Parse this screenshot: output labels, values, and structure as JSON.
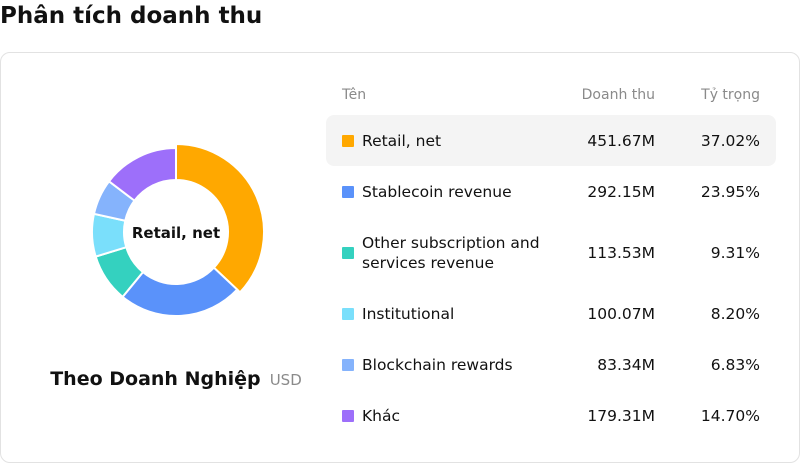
{
  "page": {
    "title": "Phân tích doanh thu"
  },
  "table": {
    "headers": {
      "name": "Tên",
      "revenue": "Doanh thu",
      "share": "Tỷ trọng"
    }
  },
  "chart_data": {
    "type": "pie",
    "variant": "donut",
    "title": "Theo Doanh Nghiệp",
    "unit": "USD",
    "center_label": "Retail, net",
    "highlighted": "Retail, net",
    "categories": [
      "Retail, net",
      "Stablecoin revenue",
      "Other subscription and services revenue",
      "Institutional",
      "Blockchain rewards",
      "Khác"
    ],
    "values": [
      451.67,
      292.15,
      113.53,
      100.07,
      83.34,
      179.31
    ],
    "value_labels": [
      "451.67M",
      "292.15M",
      "113.53M",
      "100.07M",
      "83.34M",
      "179.31M"
    ],
    "shares": [
      37.02,
      23.95,
      9.31,
      8.2,
      6.83,
      14.7
    ],
    "share_labels": [
      "37.02%",
      "23.95%",
      "9.31%",
      "8.20%",
      "6.83%",
      "14.70%"
    ],
    "colors": [
      "#FFA800",
      "#5A92FA",
      "#34D1BF",
      "#7ADFFB",
      "#85B3FC",
      "#9D6FFA"
    ]
  }
}
